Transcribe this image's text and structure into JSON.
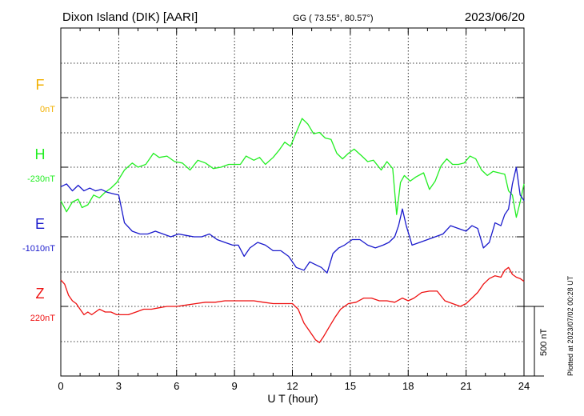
{
  "chart_data": {
    "type": "line",
    "title": "Dixon Island (DIK)  [AARI]",
    "coords": "GG ( 73.55°,  80.57°)",
    "date": "2023/06/20",
    "xlabel": "U T (hour)",
    "xlim": [
      0,
      24
    ],
    "xticks": [
      "0",
      "3",
      "6",
      "9",
      "12",
      "15",
      "18",
      "21",
      "24"
    ],
    "scale_label": "500 nT",
    "scale_nT": 500,
    "plotted_note": "Plotted at 2023/07/02 00:28 UT",
    "grid": true,
    "series": [
      {
        "name": "F",
        "baseline_label": "0nT",
        "color": "#f2b000",
        "x": [],
        "y": []
      },
      {
        "name": "H",
        "baseline_label": "-230nT",
        "color": "#22ee22",
        "x": [
          0,
          0.3,
          0.6,
          0.9,
          1.1,
          1.4,
          1.7,
          2.0,
          2.3,
          2.6,
          2.9,
          3.3,
          3.7,
          4.0,
          4.4,
          4.8,
          5.1,
          5.5,
          5.9,
          6.3,
          6.7,
          7.1,
          7.5,
          7.9,
          8.3,
          8.7,
          9.0,
          9.3,
          9.6,
          10.0,
          10.3,
          10.6,
          11.0,
          11.3,
          11.6,
          11.9,
          12.2,
          12.5,
          12.8,
          13.1,
          13.4,
          13.7,
          14.0,
          14.3,
          14.6,
          14.9,
          15.2,
          15.6,
          15.9,
          16.2,
          16.6,
          16.9,
          17.2,
          17.4,
          17.6,
          17.8,
          18.1,
          18.4,
          18.8,
          19.1,
          19.4,
          19.7,
          20.0,
          20.3,
          20.6,
          20.9,
          21.2,
          21.5,
          21.8,
          22.1,
          22.4,
          22.7,
          23.0,
          23.2,
          23.4,
          23.6,
          23.8,
          24.0
        ],
        "y": [
          -240,
          -320,
          -250,
          -230,
          -290,
          -270,
          -200,
          -220,
          -180,
          -150,
          -110,
          -20,
          30,
          0,
          20,
          100,
          70,
          80,
          40,
          30,
          -20,
          50,
          30,
          -10,
          0,
          20,
          20,
          20,
          80,
          50,
          70,
          20,
          70,
          120,
          180,
          150,
          250,
          350,
          310,
          240,
          250,
          210,
          200,
          100,
          60,
          100,
          130,
          80,
          40,
          50,
          -20,
          40,
          -10,
          -340,
          -110,
          -60,
          -100,
          -70,
          -40,
          -160,
          -100,
          10,
          60,
          20,
          20,
          30,
          80,
          60,
          -20,
          -60,
          -30,
          -40,
          -50,
          -170,
          -200,
          -360,
          -250,
          -120
        ]
      },
      {
        "name": "E",
        "baseline_label": "-1010nT",
        "color": "#1a1acc",
        "x": [
          0,
          0.3,
          0.6,
          0.9,
          1.2,
          1.5,
          1.8,
          2.1,
          2.4,
          2.7,
          3.0,
          3.3,
          3.7,
          4.1,
          4.5,
          4.9,
          5.3,
          5.7,
          6.1,
          6.5,
          6.9,
          7.3,
          7.7,
          8.1,
          8.5,
          8.9,
          9.2,
          9.5,
          9.8,
          10.2,
          10.6,
          11.0,
          11.4,
          11.8,
          12.2,
          12.6,
          12.9,
          13.2,
          13.5,
          13.8,
          14.1,
          14.4,
          14.7,
          15.1,
          15.5,
          15.9,
          16.3,
          16.7,
          17.0,
          17.3,
          17.5,
          17.7,
          17.9,
          18.2,
          18.6,
          19.0,
          19.4,
          19.8,
          20.2,
          20.6,
          21.0,
          21.3,
          21.6,
          21.9,
          22.2,
          22.5,
          22.8,
          23.0,
          23.2,
          23.4,
          23.6,
          23.8,
          24.0
        ],
        "y": [
          360,
          380,
          330,
          370,
          330,
          350,
          330,
          340,
          320,
          310,
          300,
          100,
          40,
          20,
          20,
          40,
          20,
          0,
          20,
          10,
          0,
          0,
          20,
          -20,
          -40,
          -60,
          -60,
          -140,
          -80,
          -40,
          -60,
          -100,
          -100,
          -140,
          -220,
          -240,
          -180,
          -200,
          -220,
          -260,
          -120,
          -80,
          -60,
          -20,
          -20,
          -60,
          -80,
          -60,
          -40,
          0,
          80,
          200,
          80,
          -60,
          -40,
          -20,
          0,
          20,
          80,
          60,
          40,
          80,
          60,
          -80,
          -40,
          100,
          80,
          160,
          200,
          380,
          500,
          300,
          260
        ]
      },
      {
        "name": "Z",
        "baseline_label": "220nT",
        "color": "#ee1111",
        "x": [
          0,
          0.2,
          0.4,
          0.6,
          0.8,
          1.0,
          1.2,
          1.4,
          1.6,
          1.8,
          2.0,
          2.3,
          2.6,
          2.9,
          3.2,
          3.5,
          3.9,
          4.3,
          4.7,
          5.1,
          5.5,
          6.0,
          6.5,
          7.0,
          7.5,
          8.0,
          8.5,
          9.0,
          9.5,
          10.0,
          10.5,
          11.0,
          11.5,
          12.0,
          12.3,
          12.6,
          12.9,
          13.2,
          13.4,
          13.6,
          13.9,
          14.2,
          14.5,
          14.9,
          15.3,
          15.7,
          16.1,
          16.5,
          16.9,
          17.3,
          17.7,
          18.0,
          18.3,
          18.7,
          19.1,
          19.5,
          19.9,
          20.3,
          20.7,
          21.0,
          21.3,
          21.6,
          21.9,
          22.2,
          22.5,
          22.8,
          23.0,
          23.2,
          23.4,
          23.6,
          23.8,
          24.0
        ],
        "y": [
          190,
          160,
          80,
          40,
          20,
          -20,
          -60,
          -40,
          -60,
          -40,
          -20,
          -40,
          -40,
          -60,
          -60,
          -60,
          -40,
          -20,
          -20,
          -10,
          0,
          0,
          10,
          20,
          30,
          30,
          40,
          40,
          40,
          40,
          30,
          20,
          20,
          20,
          -20,
          -120,
          -180,
          -240,
          -260,
          -220,
          -150,
          -80,
          -20,
          20,
          30,
          60,
          60,
          40,
          40,
          30,
          60,
          40,
          60,
          100,
          110,
          110,
          40,
          20,
          0,
          20,
          60,
          100,
          160,
          200,
          220,
          210,
          260,
          280,
          230,
          210,
          200,
          180
        ]
      }
    ]
  }
}
